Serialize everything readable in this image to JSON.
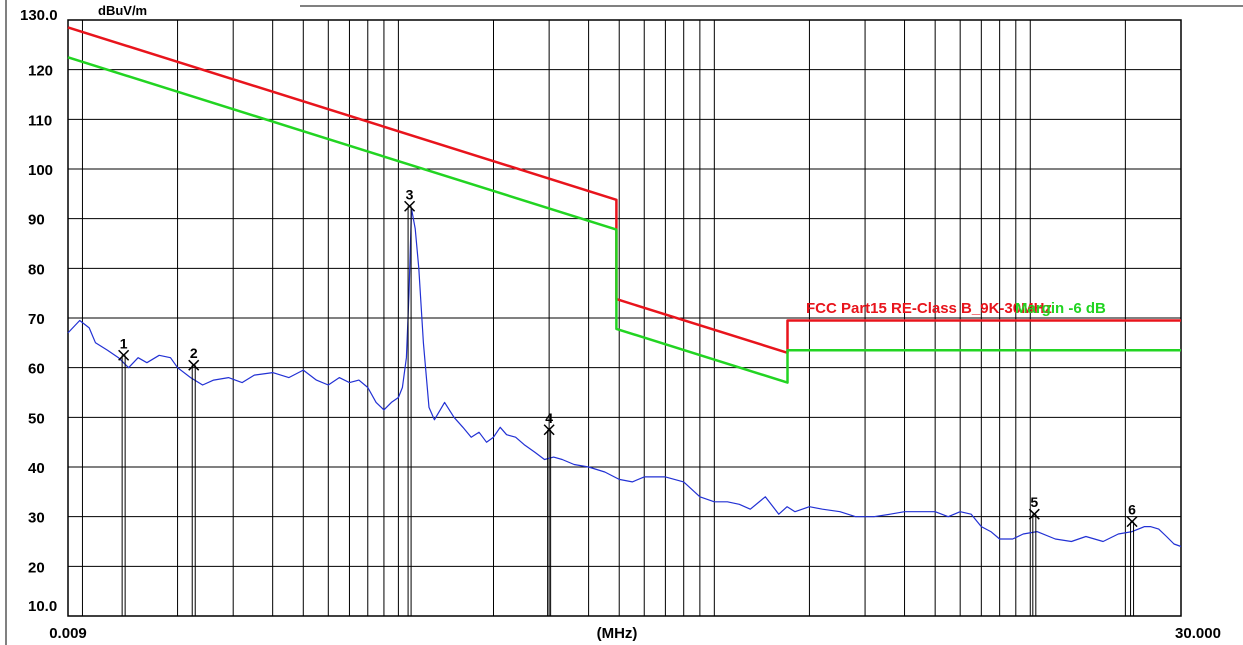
{
  "chart_data": {
    "type": "line",
    "title": "",
    "xlabel": "(MHz)",
    "ylabel": "dBuV/m",
    "xscale": "log",
    "xlim": [
      0.009,
      30.0
    ],
    "ylim": [
      10,
      130
    ],
    "x_tick_labels": [
      "0.009",
      "30.000"
    ],
    "y_top_label": "130.0",
    "y_bottom_label": "10.0",
    "y_ticks": [
      20,
      30,
      40,
      50,
      60,
      70,
      80,
      90,
      100,
      110,
      120
    ],
    "grid": true,
    "colors": {
      "limit": "#e8141c",
      "margin": "#22d422",
      "measurement": "#2231d4",
      "grid": "#000000"
    },
    "legend": [
      {
        "text": "FCC Part15 RE-Class B_9K-30MHz",
        "color": "#e8141c"
      },
      {
        "text": "Margin -6 dB",
        "color": "#22d422"
      }
    ],
    "series": [
      {
        "name": "FCC Part15 RE-Class B_9K-30MHz",
        "role": "limit",
        "x": [
          0.009,
          0.49,
          0.49,
          1.705,
          1.705,
          30.0
        ],
        "y": [
          128.5,
          93.8,
          73.8,
          63.0,
          69.5,
          69.5
        ]
      },
      {
        "name": "Margin -6 dB",
        "role": "margin",
        "x": [
          0.009,
          0.49,
          0.49,
          1.705,
          1.705,
          30.0
        ],
        "y": [
          122.5,
          87.8,
          67.8,
          57.0,
          63.5,
          63.5
        ]
      },
      {
        "role": "measurement",
        "x": [
          0.009,
          0.0098,
          0.0105,
          0.011,
          0.012,
          0.013,
          0.014,
          0.015,
          0.016,
          0.0175,
          0.019,
          0.02,
          0.022,
          0.024,
          0.026,
          0.029,
          0.032,
          0.035,
          0.04,
          0.045,
          0.05,
          0.055,
          0.06,
          0.065,
          0.07,
          0.075,
          0.08,
          0.085,
          0.09,
          0.095,
          0.1,
          0.103,
          0.106,
          0.108,
          0.11,
          0.113,
          0.116,
          0.12,
          0.125,
          0.13,
          0.14,
          0.15,
          0.16,
          0.17,
          0.18,
          0.19,
          0.2,
          0.21,
          0.22,
          0.235,
          0.25,
          0.27,
          0.29,
          0.31,
          0.33,
          0.36,
          0.4,
          0.45,
          0.5,
          0.55,
          0.6,
          0.7,
          0.8,
          0.9,
          1.0,
          1.1,
          1.2,
          1.3,
          1.45,
          1.6,
          1.7,
          1.8,
          2.0,
          2.2,
          2.5,
          2.8,
          3.2,
          3.6,
          4.0,
          4.5,
          5.0,
          5.5,
          6.0,
          6.5,
          7.0,
          7.5,
          8.0,
          8.8,
          9.5,
          10.5,
          12.0,
          13.5,
          15.0,
          17.0,
          19.0,
          21.0,
          23.0,
          24.0,
          25.5,
          27.0,
          28.5,
          30.0
        ],
        "y": [
          67,
          69.5,
          68,
          65,
          63.5,
          62,
          60,
          62,
          61,
          62.5,
          62,
          60,
          58,
          56.5,
          57.5,
          58,
          57,
          58.5,
          59,
          58,
          59.5,
          57.5,
          56.5,
          58,
          57,
          57.5,
          56,
          53,
          51.5,
          53,
          54,
          56,
          62,
          75,
          92,
          88,
          80,
          65,
          52,
          49.5,
          53,
          50,
          48,
          46,
          47,
          45,
          46,
          48,
          46.5,
          46,
          44.5,
          43,
          41.5,
          42,
          41.5,
          40.5,
          40,
          39,
          37.5,
          37,
          38,
          38,
          37,
          34,
          33,
          33,
          32.5,
          31.5,
          34,
          30.5,
          32,
          31,
          32,
          31.5,
          31,
          30,
          30,
          30.5,
          31,
          31,
          31,
          30,
          31,
          30.5,
          28,
          27,
          25.5,
          25.5,
          26.5,
          27,
          25.5,
          25,
          26,
          25,
          26.5,
          27,
          28,
          28,
          27.5,
          26,
          24.5,
          24
        ]
      }
    ],
    "markers": [
      {
        "label": "1",
        "x": 0.0135,
        "y": 62.5
      },
      {
        "label": "2",
        "x": 0.0225,
        "y": 60.5
      },
      {
        "label": "3",
        "x": 0.1085,
        "y": 92.5
      },
      {
        "label": "4",
        "x": 0.3,
        "y": 47.5
      },
      {
        "label": "5",
        "x": 10.3,
        "y": 30.5
      },
      {
        "label": "6",
        "x": 21.0,
        "y": 29.0
      }
    ]
  }
}
